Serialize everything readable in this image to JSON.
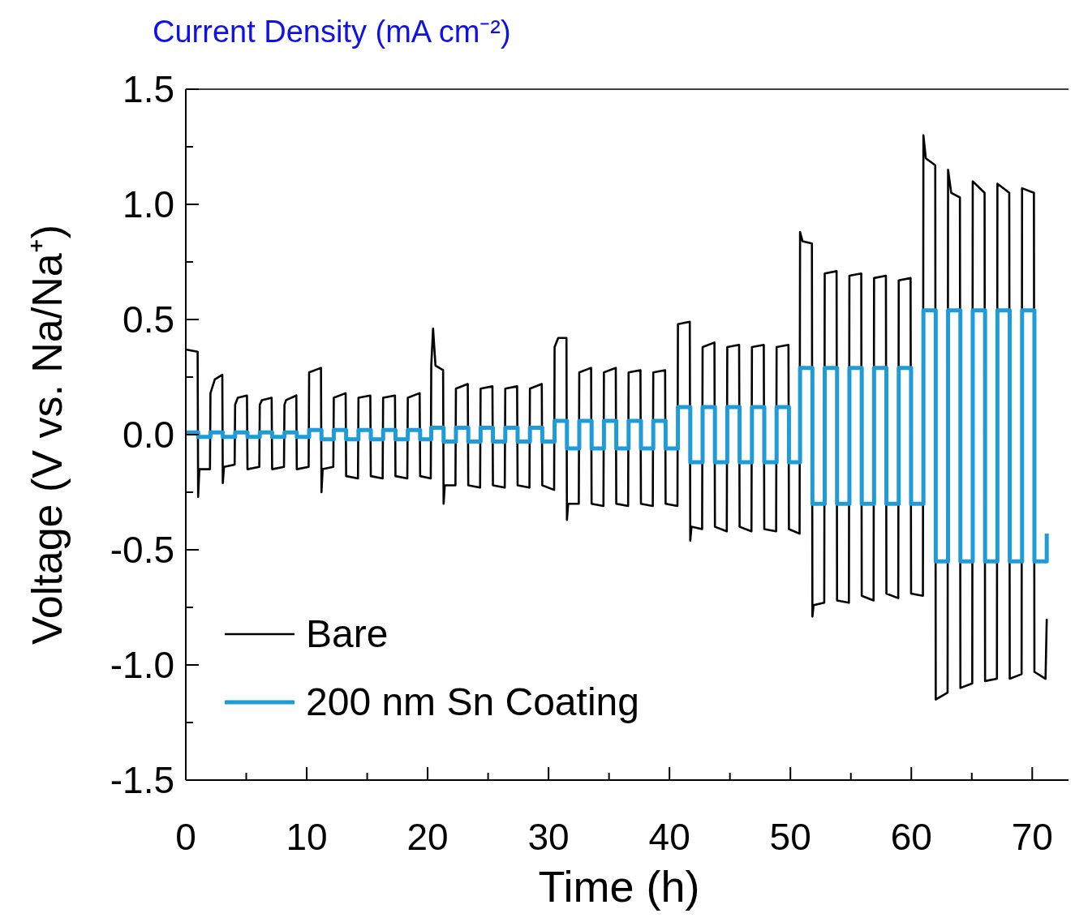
{
  "chart_data": {
    "type": "line",
    "xlabel": "Time (h)",
    "ylabel": "Voltage (V vs. Na/Na⁺)",
    "annotations": [
      "Current Density (mA cm⁻²)"
    ],
    "xlim": [
      0,
      73
    ],
    "xticks": [
      0,
      {
        "value": 5,
        "label": null
      },
      10,
      {
        "value": 15,
        "label": null
      },
      20,
      {
        "value": 25,
        "label": null
      },
      30,
      {
        "value": 35,
        "label": null
      },
      40,
      {
        "value": 45,
        "label": null
      },
      50,
      {
        "value": 55,
        "label": null
      },
      60,
      {
        "value": 65,
        "label": null
      },
      70
    ],
    "ylim": [
      -1.5,
      1.5
    ],
    "yticks": [
      {
        "value": -1.5,
        "label": "-1.5"
      },
      {
        "value": -1.25,
        "label": null
      },
      {
        "value": -1,
        "label": "-1.0"
      },
      {
        "value": -0.75,
        "label": null
      },
      {
        "value": -0.5,
        "label": "-0.5"
      },
      {
        "value": -0.25,
        "label": null
      },
      {
        "value": 0,
        "label": "0.0"
      },
      {
        "value": 0.25,
        "label": null
      },
      {
        "value": 0.5,
        "label": "0.5"
      },
      {
        "value": 0.75,
        "label": null
      },
      {
        "value": 1,
        "label": "1.0"
      },
      {
        "value": 1.25,
        "label": null
      },
      {
        "value": 1.5,
        "label": "1.5"
      }
    ],
    "grid": false,
    "legend": "bottom left",
    "marker": "none",
    "line_style": "solid",
    "series": [
      {
        "name": "Bare",
        "color": "#000000",
        "x": [
          0,
          0.98,
          1.02,
          1.12,
          2.0,
          2.04,
          2.4,
          3.02,
          3.06,
          3.16,
          4.04,
          4.08,
          4.3,
          5.06,
          5.1,
          6.08,
          6.12,
          6.3,
          7.1,
          7.14,
          8.12,
          8.16,
          8.3,
          9.14,
          9.18,
          10.16,
          10.2,
          11.18,
          11.22,
          11.32,
          12.2,
          12.24,
          13.22,
          13.26,
          14.24,
          14.28,
          15.26,
          15.3,
          16.28,
          16.32,
          17.3,
          17.34,
          18.32,
          18.36,
          19.34,
          19.38,
          20.26,
          20.3,
          20.45,
          20.65,
          21.28,
          21.32,
          21.42,
          22.3,
          22.34,
          23.32,
          23.36,
          24.34,
          24.38,
          25.36,
          25.4,
          26.38,
          26.42,
          27.4,
          27.44,
          28.42,
          28.46,
          29.44,
          29.48,
          30.46,
          30.5,
          30.8,
          31.48,
          31.52,
          31.62,
          32.5,
          32.54,
          33.52,
          33.56,
          34.54,
          34.58,
          35.56,
          35.6,
          36.58,
          36.62,
          37.6,
          37.64,
          38.62,
          38.66,
          39.64,
          39.68,
          40.66,
          40.7,
          41.68,
          41.72,
          41.82,
          42.7,
          42.74,
          43.72,
          43.76,
          44.74,
          44.78,
          45.76,
          45.8,
          46.78,
          46.82,
          47.8,
          47.84,
          48.82,
          48.86,
          49.84,
          49.88,
          50.76,
          50.8,
          51.0,
          51.78,
          51.82,
          51.92,
          52.8,
          52.84,
          53.82,
          53.86,
          54.84,
          54.88,
          55.86,
          55.9,
          56.88,
          56.92,
          57.9,
          57.94,
          58.92,
          58.96,
          59.94,
          59.98,
          60.96,
          61.0,
          61.2,
          61.98,
          62.02,
          63.0,
          63.04,
          63.3,
          64.02,
          64.06,
          65.04,
          65.08,
          66.06,
          66.1,
          67.08,
          67.12,
          68.1,
          68.14,
          69.12,
          69.16,
          70.14,
          70.18,
          71.1,
          71.2
        ],
        "values": [
          0.37,
          0.36,
          -0.27,
          -0.15,
          -0.15,
          0.18,
          0.24,
          0.26,
          -0.21,
          -0.14,
          -0.13,
          0.13,
          0.16,
          0.17,
          -0.15,
          -0.14,
          0.13,
          0.15,
          0.16,
          -0.15,
          -0.14,
          0.13,
          0.15,
          0.17,
          -0.15,
          -0.14,
          0.27,
          0.29,
          -0.25,
          -0.15,
          -0.14,
          0.16,
          0.18,
          -0.18,
          -0.19,
          0.16,
          0.17,
          -0.18,
          -0.19,
          0.16,
          0.17,
          -0.18,
          -0.19,
          0.16,
          0.18,
          -0.18,
          -0.19,
          0.3,
          0.46,
          0.3,
          0.28,
          -0.3,
          -0.22,
          -0.22,
          0.2,
          0.22,
          -0.22,
          -0.23,
          0.2,
          0.21,
          -0.22,
          -0.23,
          0.2,
          0.21,
          -0.22,
          -0.23,
          0.2,
          0.22,
          -0.22,
          -0.24,
          0.38,
          0.42,
          0.42,
          -0.37,
          -0.3,
          -0.3,
          0.27,
          0.29,
          -0.3,
          -0.31,
          0.27,
          0.29,
          -0.3,
          -0.31,
          0.27,
          0.28,
          -0.3,
          -0.31,
          0.27,
          0.28,
          -0.3,
          -0.31,
          0.48,
          0.49,
          -0.46,
          -0.4,
          -0.41,
          0.38,
          0.4,
          -0.4,
          -0.42,
          0.38,
          0.39,
          -0.4,
          -0.42,
          0.38,
          0.39,
          -0.41,
          -0.42,
          0.38,
          0.39,
          -0.41,
          -0.43,
          0.88,
          0.84,
          0.83,
          -0.79,
          -0.74,
          -0.73,
          0.7,
          0.71,
          -0.72,
          -0.73,
          0.69,
          0.7,
          -0.7,
          -0.72,
          0.68,
          0.69,
          -0.69,
          -0.71,
          0.67,
          0.68,
          -0.69,
          -0.7,
          1.3,
          1.2,
          1.17,
          -1.15,
          -1.12,
          1.15,
          1.05,
          1.03,
          -1.1,
          -1.08,
          1.1,
          1.05,
          -1.07,
          -1.06,
          1.09,
          1.05,
          -1.06,
          -1.04,
          1.07,
          1.05,
          -1.03,
          -1.06,
          -0.8
        ]
      },
      {
        "name": "200 nm Sn Coating",
        "color": "#1f9bd7",
        "type": "step",
        "x": [
          0,
          1.02,
          2.04,
          3.06,
          4.08,
          5.1,
          6.12,
          7.14,
          8.16,
          9.18,
          10.2,
          11.22,
          12.24,
          13.26,
          14.28,
          15.3,
          16.32,
          17.34,
          18.36,
          19.38,
          20.3,
          21.32,
          22.34,
          23.36,
          24.38,
          25.4,
          26.42,
          27.44,
          28.46,
          29.48,
          30.5,
          31.52,
          32.54,
          33.56,
          34.58,
          35.6,
          36.62,
          37.64,
          38.66,
          39.68,
          40.7,
          41.72,
          42.74,
          43.76,
          44.78,
          45.8,
          46.82,
          47.84,
          48.86,
          49.88,
          50.8,
          51.82,
          52.84,
          53.86,
          54.88,
          55.9,
          56.92,
          57.94,
          58.96,
          59.98,
          61.0,
          62.02,
          63.04,
          64.06,
          65.08,
          66.1,
          67.12,
          68.14,
          69.16,
          70.18,
          71.2
        ],
        "values": [
          0.01,
          -0.01,
          0.01,
          -0.01,
          0.01,
          -0.01,
          0.01,
          -0.01,
          0.01,
          -0.01,
          0.02,
          -0.02,
          0.02,
          -0.02,
          0.02,
          -0.02,
          0.02,
          -0.02,
          0.02,
          -0.02,
          0.03,
          -0.03,
          0.03,
          -0.03,
          0.03,
          -0.03,
          0.03,
          -0.03,
          0.03,
          -0.03,
          0.06,
          -0.06,
          0.06,
          -0.06,
          0.06,
          -0.06,
          0.06,
          -0.06,
          0.06,
          -0.06,
          0.12,
          -0.12,
          0.12,
          -0.12,
          0.12,
          -0.12,
          0.12,
          -0.12,
          0.12,
          -0.12,
          0.29,
          -0.3,
          0.29,
          -0.3,
          0.29,
          -0.3,
          0.29,
          -0.3,
          0.29,
          -0.3,
          0.54,
          -0.55,
          0.54,
          -0.55,
          0.54,
          -0.55,
          0.54,
          -0.55,
          0.54,
          -0.55,
          -0.43
        ]
      }
    ]
  }
}
